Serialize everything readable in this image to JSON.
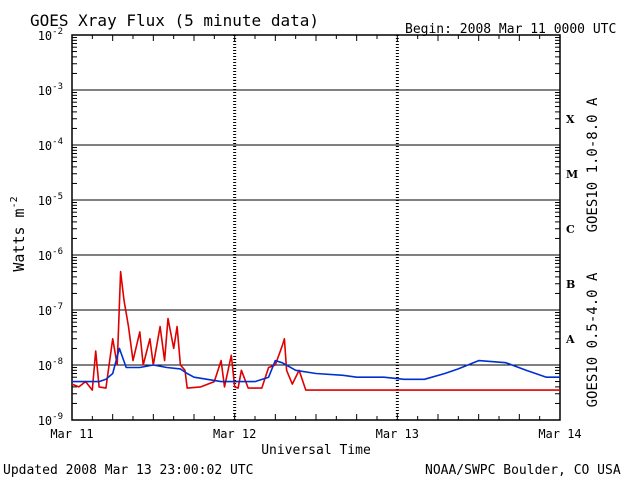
{
  "header": {
    "title": "GOES Xray Flux (5 minute data)",
    "begin": "Begin:  2008 Mar 11 0000 UTC"
  },
  "footer": {
    "updated": "Updated 2008 Mar 13 23:00:02 UTC",
    "credit": "NOAA/SWPC Boulder, CO USA"
  },
  "chart_data": {
    "type": "line",
    "title": "GOES Xray Flux (5 minute data)",
    "xlabel": "Universal Time",
    "ylabel": "Watts m",
    "ylabel_exp": "-2",
    "yscale": "log",
    "ylim": [
      1e-09,
      0.01
    ],
    "xlim": [
      "2008-03-11",
      "2008-03-14"
    ],
    "x_ticks": [
      "Mar 11",
      "Mar 12",
      "Mar 13",
      "Mar 14"
    ],
    "y_ticks": [
      {
        "base": "10",
        "exp": "-2",
        "value": 0.01
      },
      {
        "base": "10",
        "exp": "-3",
        "value": 0.001
      },
      {
        "base": "10",
        "exp": "-4",
        "value": 0.0001
      },
      {
        "base": "10",
        "exp": "-5",
        "value": 1e-05
      },
      {
        "base": "10",
        "exp": "-6",
        "value": 1e-06
      },
      {
        "base": "10",
        "exp": "-7",
        "value": 1e-07
      },
      {
        "base": "10",
        "exp": "-8",
        "value": 1e-08
      },
      {
        "base": "10",
        "exp": "-9",
        "value": 1e-09
      }
    ],
    "flare_classes": [
      {
        "label": "X",
        "value": 0.0003
      },
      {
        "label": "M",
        "value": 3e-05
      },
      {
        "label": "C",
        "value": 3e-06
      },
      {
        "label": "B",
        "value": 3e-07
      },
      {
        "label": "A",
        "value": 3e-08
      }
    ],
    "grid": true,
    "series": [
      {
        "name": "GOES10 1.0-8.0 A",
        "color": "#e00000",
        "points": [
          [
            "2008-03-11T00:00",
            4.5e-09
          ],
          [
            "2008-03-11T01:00",
            4e-09
          ],
          [
            "2008-03-11T02:00",
            5e-09
          ],
          [
            "2008-03-11T03:00",
            3.5e-09
          ],
          [
            "2008-03-11T03:30",
            1.8e-08
          ],
          [
            "2008-03-11T04:00",
            4e-09
          ],
          [
            "2008-03-11T05:00",
            3.8e-09
          ],
          [
            "2008-03-11T06:00",
            3e-08
          ],
          [
            "2008-03-11T06:40",
            1e-08
          ],
          [
            "2008-03-11T07:10",
            5e-07
          ],
          [
            "2008-03-11T07:40",
            1.5e-07
          ],
          [
            "2008-03-11T08:20",
            5e-08
          ],
          [
            "2008-03-11T09:00",
            1.2e-08
          ],
          [
            "2008-03-11T10:00",
            4e-08
          ],
          [
            "2008-03-11T10:30",
            1e-08
          ],
          [
            "2008-03-11T11:30",
            3e-08
          ],
          [
            "2008-03-11T12:00",
            1e-08
          ],
          [
            "2008-03-11T13:00",
            5e-08
          ],
          [
            "2008-03-11T13:40",
            1.2e-08
          ],
          [
            "2008-03-11T14:10",
            7e-08
          ],
          [
            "2008-03-11T15:00",
            2e-08
          ],
          [
            "2008-03-11T15:30",
            5e-08
          ],
          [
            "2008-03-11T16:00",
            1e-08
          ],
          [
            "2008-03-11T16:40",
            8e-09
          ],
          [
            "2008-03-11T17:00",
            3.8e-09
          ],
          [
            "2008-03-11T19:00",
            4e-09
          ],
          [
            "2008-03-11T21:00",
            5e-09
          ],
          [
            "2008-03-11T22:00",
            1.2e-08
          ],
          [
            "2008-03-11T22:30",
            4e-09
          ],
          [
            "2008-03-11T23:30",
            1.5e-08
          ],
          [
            "2008-03-12T00:00",
            4e-09
          ],
          [
            "2008-03-12T00:30",
            3.8e-09
          ],
          [
            "2008-03-12T01:00",
            8e-09
          ],
          [
            "2008-03-12T02:00",
            3.8e-09
          ],
          [
            "2008-03-12T04:00",
            3.8e-09
          ],
          [
            "2008-03-12T05:00",
            9e-09
          ],
          [
            "2008-03-12T06:00",
            1e-08
          ],
          [
            "2008-03-12T07:00",
            2.2e-08
          ],
          [
            "2008-03-12T07:20",
            3e-08
          ],
          [
            "2008-03-12T07:40",
            8e-09
          ],
          [
            "2008-03-12T08:30",
            4.5e-09
          ],
          [
            "2008-03-12T09:30",
            8e-09
          ],
          [
            "2008-03-12T10:30",
            3.5e-09
          ],
          [
            "2008-03-12T12:00",
            3.5e-09
          ],
          [
            "2008-03-13T23:59",
            3.5e-09
          ]
        ]
      },
      {
        "name": "GOES10 0.5-4.0 A",
        "color": "#0030d0",
        "points": [
          [
            "2008-03-11T00:00",
            5e-09
          ],
          [
            "2008-03-11T04:00",
            5e-09
          ],
          [
            "2008-03-11T05:00",
            5.5e-09
          ],
          [
            "2008-03-11T06:00",
            7e-09
          ],
          [
            "2008-03-11T07:00",
            2e-08
          ],
          [
            "2008-03-11T08:00",
            9e-09
          ],
          [
            "2008-03-11T10:00",
            9e-09
          ],
          [
            "2008-03-11T12:00",
            1e-08
          ],
          [
            "2008-03-11T14:00",
            9e-09
          ],
          [
            "2008-03-11T16:00",
            8.5e-09
          ],
          [
            "2008-03-11T17:00",
            7e-09
          ],
          [
            "2008-03-11T18:00",
            6e-09
          ],
          [
            "2008-03-11T22:00",
            5e-09
          ],
          [
            "2008-03-12T03:00",
            5e-09
          ],
          [
            "2008-03-12T05:00",
            6e-09
          ],
          [
            "2008-03-12T06:00",
            1.2e-08
          ],
          [
            "2008-03-12T07:00",
            1.1e-08
          ],
          [
            "2008-03-12T09:00",
            8e-09
          ],
          [
            "2008-03-12T12:00",
            7e-09
          ],
          [
            "2008-03-12T16:00",
            6.5e-09
          ],
          [
            "2008-03-12T18:00",
            6e-09
          ],
          [
            "2008-03-12T22:00",
            6e-09
          ],
          [
            "2008-03-13T01:00",
            5.5e-09
          ],
          [
            "2008-03-13T04:00",
            5.5e-09
          ],
          [
            "2008-03-13T07:00",
            7e-09
          ],
          [
            "2008-03-13T09:00",
            8.5e-09
          ],
          [
            "2008-03-13T12:00",
            1.2e-08
          ],
          [
            "2008-03-13T16:00",
            1.1e-08
          ],
          [
            "2008-03-13T19:00",
            8e-09
          ],
          [
            "2008-03-13T22:00",
            6e-09
          ],
          [
            "2008-03-13T23:59",
            6e-09
          ]
        ]
      }
    ]
  }
}
